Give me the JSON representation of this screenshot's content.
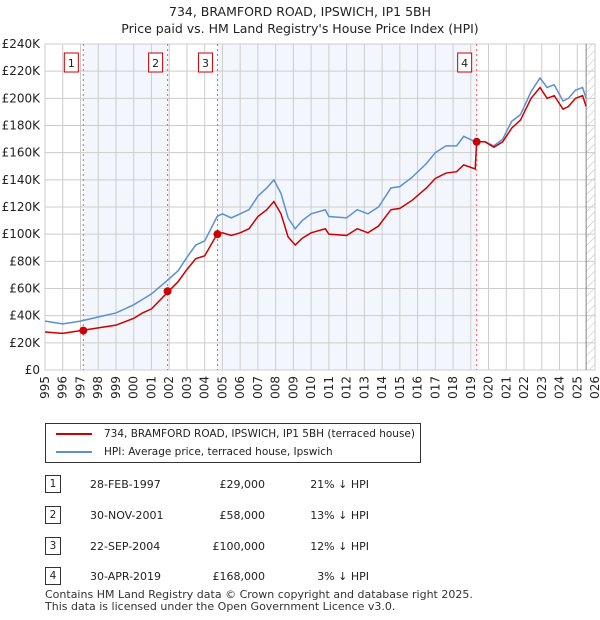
{
  "title": "734, BRAMFORD ROAD, IPSWICH, IP1 5BH",
  "subtitle": "Price paid vs. HM Land Registry's House Price Index (HPI)",
  "chart_data": {
    "type": "line",
    "title": "734, BRAMFORD ROAD, IPSWICH, IP1 5BH",
    "subtitle": "Price paid vs. HM Land Registry's House Price Index (HPI)",
    "xlim": [
      1995,
      2026
    ],
    "ylim": [
      0,
      240000
    ],
    "x_ticks": [
      "1995",
      "1996",
      "1997",
      "1998",
      "1999",
      "2000",
      "2001",
      "2002",
      "2003",
      "2004",
      "2005",
      "2006",
      "2007",
      "2008",
      "2009",
      "2010",
      "2011",
      "2012",
      "2013",
      "2014",
      "2015",
      "2016",
      "2017",
      "2018",
      "2019",
      "2020",
      "2021",
      "2022",
      "2023",
      "2024",
      "2025",
      "2026"
    ],
    "y_ticks": [
      "£0",
      "£20K",
      "£40K",
      "£60K",
      "£80K",
      "£100K",
      "£120K",
      "£140K",
      "£160K",
      "£180K",
      "£200K",
      "£220K",
      "£240K"
    ],
    "grid": true,
    "x": [
      1995,
      1996,
      1997,
      1998,
      1999,
      2000,
      2000.5,
      2001,
      2001.9,
      2002.5,
      2003,
      2003.5,
      2004,
      2004.7,
      2005,
      2005.5,
      2006,
      2006.5,
      2007,
      2007.5,
      2007.9,
      2008.3,
      2008.7,
      2009.1,
      2009.5,
      2010,
      2010.8,
      2011,
      2012,
      2012.6,
      2013.2,
      2013.8,
      2014.5,
      2015,
      2015.7,
      2016.5,
      2017,
      2017.6,
      2018.2,
      2018.6,
      2019.25,
      2019.33,
      2019.8,
      2020.3,
      2020.8,
      2021.3,
      2021.8,
      2022.4,
      2022.9,
      2023.3,
      2023.7,
      2024.2,
      2024.5,
      2024.9,
      2025.3,
      2025.5
    ],
    "series": [
      {
        "name": "734, BRAMFORD ROAD, IPSWICH, IP1 5BH (terraced house)",
        "color": "#cc0000",
        "values": [
          28000,
          27000,
          29000,
          31000,
          33000,
          38000,
          42000,
          45000,
          57000,
          65000,
          74000,
          82000,
          84000,
          100000,
          101000,
          99000,
          101000,
          104000,
          113000,
          118000,
          124000,
          115000,
          98000,
          92000,
          97000,
          101000,
          104000,
          100000,
          99000,
          104000,
          101000,
          106000,
          118000,
          119000,
          125000,
          134000,
          141000,
          145000,
          146000,
          151000,
          148000,
          168000,
          168000,
          164000,
          168000,
          178000,
          184000,
          200000,
          208000,
          200000,
          202000,
          192000,
          194000,
          200000,
          202000,
          194000
        ]
      },
      {
        "name": "HPI: Average price, terraced house, Ipswich",
        "color": "#5b8fd4",
        "values": [
          36000,
          34000,
          36000,
          39000,
          42000,
          48000,
          52000,
          56000,
          66000,
          73000,
          83000,
          92000,
          95000,
          113000,
          115000,
          112000,
          115000,
          118000,
          128000,
          134000,
          140000,
          130000,
          112000,
          104000,
          110000,
          115000,
          118000,
          113000,
          112000,
          118000,
          115000,
          120000,
          134000,
          135000,
          142000,
          152000,
          160000,
          165000,
          165000,
          172000,
          168000,
          168000,
          168000,
          165000,
          170000,
          183000,
          188000,
          205000,
          215000,
          208000,
          210000,
          198000,
          200000,
          206000,
          208000,
          200000
        ]
      }
    ],
    "sales": [
      {
        "label": "1",
        "x": 1997.16,
        "y": 29000
      },
      {
        "label": "2",
        "x": 2001.91,
        "y": 58000
      },
      {
        "label": "3",
        "x": 2004.72,
        "y": 100000
      },
      {
        "label": "4",
        "x": 2019.33,
        "y": 168000
      }
    ],
    "forecast_start": 2025.5,
    "legend_placement": "below"
  },
  "legend": [
    {
      "label": "734, BRAMFORD ROAD, IPSWICH, IP1 5BH (terraced house)",
      "color": "#cc0000"
    },
    {
      "label": "HPI: Average price, terraced house, Ipswich",
      "color": "#5b8fd4"
    }
  ],
  "transactions": [
    {
      "num": "1",
      "date": "28-FEB-1997",
      "price": "£29,000",
      "hpi": "21% ↓ HPI"
    },
    {
      "num": "2",
      "date": "30-NOV-2001",
      "price": "£58,000",
      "hpi": "13% ↓ HPI"
    },
    {
      "num": "3",
      "date": "22-SEP-2004",
      "price": "£100,000",
      "hpi": "12% ↓ HPI"
    },
    {
      "num": "4",
      "date": "30-APR-2019",
      "price": "£168,000",
      "hpi": "3% ↓ HPI"
    }
  ],
  "footer": [
    "Contains HM Land Registry data © Crown copyright and database right 2025.",
    "This data is licensed under the Open Government Licence v3.0."
  ]
}
